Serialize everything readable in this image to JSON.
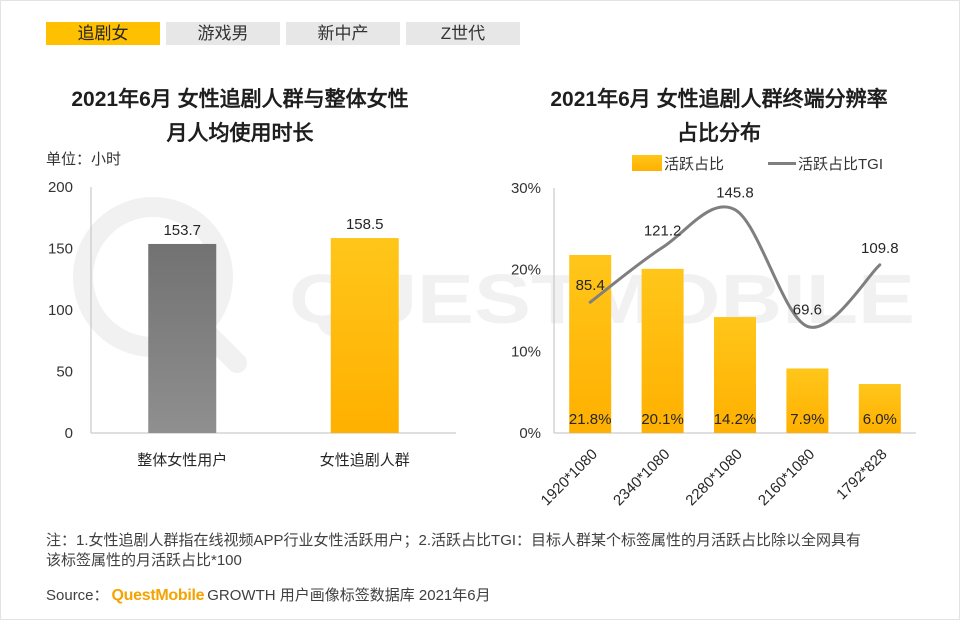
{
  "tabs": [
    {
      "label": "追剧女",
      "active": true
    },
    {
      "label": "游戏男",
      "active": false
    },
    {
      "label": "新中产",
      "active": false
    },
    {
      "label": "Z世代",
      "active": false
    }
  ],
  "watermark": "QUESTMOBILE",
  "colors": {
    "tab_active": "#FFC000",
    "tab_inactive": "#E7E7E7",
    "bar_yellow_top": "#FFC61A",
    "bar_yellow_bottom": "#FFB000",
    "bar_gray_top": "#727272",
    "bar_gray_bottom": "#8F8F8F",
    "tgi_line": "#7F7F7F",
    "axis": "#BFBFBF",
    "brand": "#F5A300",
    "watermark": "#F1F1F1"
  },
  "chart_data": [
    {
      "type": "bar",
      "title_lines": [
        "2021年6月 女性追剧人群与整体女性",
        "月人均使用时长"
      ],
      "unit": "单位：小时",
      "categories": [
        "整体女性用户",
        "女性追剧人群"
      ],
      "values": [
        153.7,
        158.5
      ],
      "value_labels": [
        "153.7",
        "158.5"
      ],
      "bar_colors": [
        [
          "#727272",
          "#8F8F8F"
        ],
        [
          "#FFC61A",
          "#FFB000"
        ]
      ],
      "ylim": [
        0,
        200
      ],
      "yticks": [
        0,
        50,
        100,
        150,
        200
      ],
      "ytick_labels": [
        "0",
        "50",
        "100",
        "150",
        "200"
      ],
      "grid": false
    },
    {
      "type": "bar",
      "title_lines": [
        "2021年6月 女性追剧人群终端分辨率",
        "占比分布"
      ],
      "categories": [
        "1920*1080",
        "2340*1080",
        "2280*1080",
        "2160*1080",
        "1792*828"
      ],
      "series": [
        {
          "name": "活跃占比",
          "type": "bar",
          "values": [
            21.8,
            20.1,
            14.2,
            7.9,
            6.0
          ],
          "value_labels": [
            "21.8%",
            "20.1%",
            "14.2%",
            "7.9%",
            "6.0%"
          ]
        },
        {
          "name": "活跃占比TGI",
          "type": "line",
          "smooth": true,
          "secondary_axis": true,
          "values": [
            85.4,
            121.2,
            145.8,
            69.6,
            109.8
          ],
          "value_labels": [
            "85.4",
            "121.2",
            "145.8",
            "69.6",
            "109.8"
          ]
        }
      ],
      "ylim": [
        0,
        30
      ],
      "yticks": [
        0,
        10,
        20,
        30
      ],
      "ytick_labels": [
        "0%",
        "10%",
        "20%",
        "30%"
      ],
      "y2lim": [
        0,
        160
      ],
      "legend": "top",
      "grid": false
    }
  ],
  "footer": {
    "note_line1": "注：1.女性追剧人群指在线视频APP行业女性活跃用户；2.活跃占比TGI：目标人群某个标签属性的月活跃占比除以全网具有",
    "note_line2": "该标签属性的月活跃占比*100",
    "source_prefix": "Source：",
    "source_brand": "QuestMobile",
    "source_text": "GROWTH 用户画像标签数据库 2021年6月"
  }
}
